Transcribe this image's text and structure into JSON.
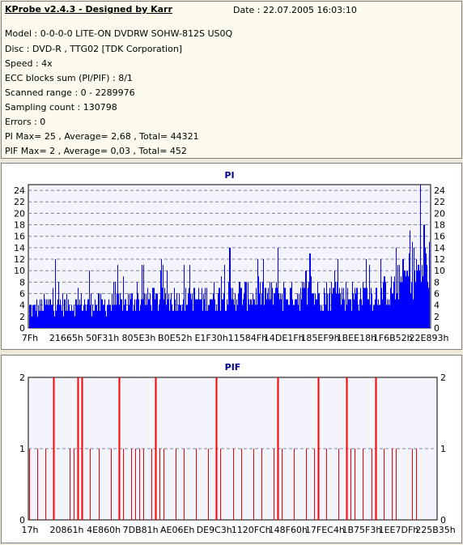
{
  "info": {
    "title": "KProbe v2.4.3 - Designed by Karr",
    "date": "Date : 22.07.2005 16:03:10",
    "lines": [
      "Model : 0-0-0-0 LITE-ON DVDRW SOHW-812S  US0Q",
      "Disc : DVD-R , TTG02 [TDK Corporation]",
      "Speed : 4x",
      "ECC blocks sum (PI/PIF) : 8/1",
      "Scanned range : 0 - 2289976",
      "Sampling count : 130798",
      "Errors : 0",
      "PI Max= 25 , Average= 2,68 , Total= 44321",
      "PIF Max= 2 , Average= 0,03 , Total= 452"
    ]
  },
  "chart_data": [
    {
      "type": "bar",
      "title": "PI",
      "ylim": [
        0,
        25
      ],
      "y_ticks": [
        0,
        2,
        4,
        6,
        8,
        10,
        12,
        14,
        16,
        18,
        20,
        22,
        24
      ],
      "x_ticks": [
        "7Fh",
        "21665h",
        "50F31h",
        "805E3h",
        "B0E52h",
        "E1F30h",
        "11584Fh",
        "14DE1Fh",
        "185EF9h",
        "1BEE18h",
        "1F6B52h",
        "22E893h"
      ],
      "grid": true,
      "color": "#0000ff",
      "max": 25,
      "average": 2.68,
      "envelope": [
        [
          0,
          4
        ],
        [
          0.05,
          5
        ],
        [
          0.12,
          5
        ],
        [
          0.2,
          5
        ],
        [
          0.3,
          6
        ],
        [
          0.4,
          6
        ],
        [
          0.5,
          7
        ],
        [
          0.6,
          7
        ],
        [
          0.7,
          7
        ],
        [
          0.8,
          7
        ],
        [
          0.87,
          7
        ],
        [
          0.9,
          8
        ],
        [
          0.93,
          10
        ],
        [
          0.96,
          12
        ],
        [
          1,
          13
        ]
      ],
      "spikes": [
        [
          0.065,
          12
        ],
        [
          0.15,
          10
        ],
        [
          0.22,
          11
        ],
        [
          0.28,
          11
        ],
        [
          0.33,
          12
        ],
        [
          0.4,
          11
        ],
        [
          0.5,
          14
        ],
        [
          0.57,
          12
        ],
        [
          0.62,
          14
        ],
        [
          0.7,
          13
        ],
        [
          0.77,
          12
        ],
        [
          0.84,
          12
        ],
        [
          0.915,
          14
        ],
        [
          0.95,
          17
        ],
        [
          0.975,
          25
        ],
        [
          0.985,
          18
        ]
      ]
    },
    {
      "type": "bar",
      "title": "PIF",
      "ylim": [
        0,
        2
      ],
      "y_ticks": [
        0,
        1,
        2
      ],
      "x_ticks": [
        "17h",
        "20861h",
        "4E860h",
        "7DB81h",
        "AE06Eh",
        "DE9C3h",
        "1120FCh",
        "148F60h",
        "17FEC4h",
        "1B75F3h",
        "1EE7DFh",
        "225B35h"
      ],
      "grid": true,
      "color": "#ff0000",
      "max": 2,
      "average": 0.03,
      "bars2": [
        0.06,
        0.12,
        0.13,
        0.22,
        0.31,
        0.46,
        0.61,
        0.71,
        0.78,
        0.85
      ],
      "bars1": [
        0.0,
        0.02,
        0.04,
        0.1,
        0.11,
        0.15,
        0.17,
        0.2,
        0.23,
        0.25,
        0.26,
        0.27,
        0.28,
        0.3,
        0.32,
        0.33,
        0.36,
        0.38,
        0.41,
        0.44,
        0.47,
        0.5,
        0.52,
        0.55,
        0.57,
        0.6,
        0.62,
        0.65,
        0.68,
        0.7,
        0.73,
        0.76,
        0.79,
        0.8,
        0.82,
        0.84,
        0.87,
        0.89,
        0.9,
        0.94,
        0.95
      ]
    }
  ]
}
